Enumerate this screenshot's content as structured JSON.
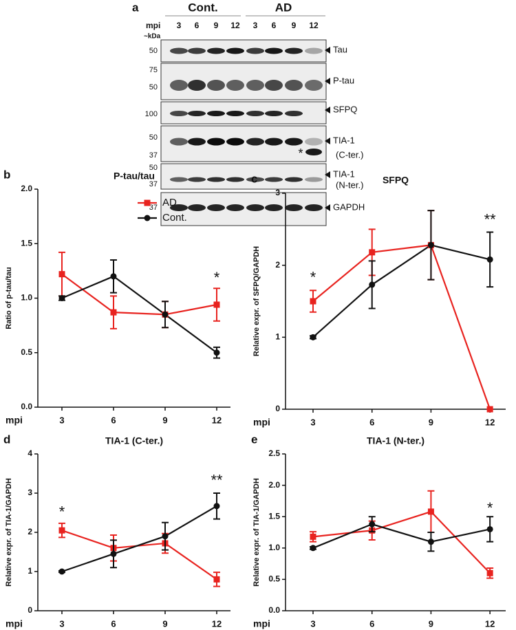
{
  "blot": {
    "panel": "a",
    "groups": [
      "Cont.",
      "AD"
    ],
    "mpi": "mpi",
    "lanes": [
      "3",
      "6",
      "9",
      "12",
      "3",
      "6",
      "9",
      "12"
    ],
    "kda": "~kDa",
    "strips": [
      {
        "markers": [
          "50"
        ],
        "protein": [
          "Tau"
        ]
      },
      {
        "markers": [
          "75",
          "50"
        ],
        "protein": [
          "P-tau"
        ]
      },
      {
        "markers": [
          "100"
        ],
        "protein": [
          "SFPQ"
        ]
      },
      {
        "markers": [
          "50",
          "37"
        ],
        "protein": [
          "TIA-1",
          "(C-ter.)"
        ],
        "note": "*"
      },
      {
        "markers": [
          "50",
          "37"
        ],
        "protein": [
          "TIA-1",
          "(N-ter.)"
        ]
      },
      {
        "markers": [
          "37"
        ],
        "protein": [
          "GAPDH"
        ]
      }
    ]
  },
  "chart_data": [
    {
      "type": "line",
      "panel": "b",
      "title": "P-tau/tau",
      "ylabel": "Ratio of p-tau/tau",
      "xlabel": "mpi",
      "x": [
        3,
        6,
        9,
        12
      ],
      "xlim": [
        1.6,
        12.8
      ],
      "xticks": [
        3,
        6,
        9,
        12
      ],
      "ylim": [
        0,
        2
      ],
      "yticks": [
        {
          "value": 0,
          "label": "0.0"
        },
        0.5,
        {
          "value": 1,
          "label": "1.0"
        },
        1.5,
        {
          "value": 2,
          "label": "2.0"
        }
      ],
      "legend": "upper right",
      "series": [
        {
          "name": "AD",
          "color": "#e8231f",
          "marker": "square",
          "values": [
            1.22,
            0.87,
            0.85,
            0.94
          ],
          "errors": [
            0.2,
            0.15,
            0.12,
            0.15
          ]
        },
        {
          "name": "Cont.",
          "color": "#111111",
          "marker": "circle",
          "values": [
            1.0,
            1.2,
            0.85,
            0.5
          ],
          "errors": [
            0.02,
            0.15,
            0.12,
            0.05
          ]
        }
      ],
      "annotations": [
        {
          "x": 12,
          "y": 1.18,
          "text": "*"
        }
      ]
    },
    {
      "type": "line",
      "panel": "c",
      "title": "SFPQ",
      "ylabel": "Relative expr. of SFPQ/GAPDH",
      "xlabel": "mpi",
      "x": [
        3,
        6,
        9,
        12
      ],
      "xlim": [
        1.6,
        12.8
      ],
      "xticks": [
        3,
        6,
        9,
        12
      ],
      "ylim": [
        0,
        3
      ],
      "yticks": [
        0,
        1,
        2,
        3
      ],
      "series": [
        {
          "color": "#e8231f",
          "marker": "square",
          "values": [
            1.5,
            2.18,
            2.28,
            0
          ],
          "errors": [
            0.15,
            0.32,
            0.48,
            0
          ]
        },
        {
          "color": "#111111",
          "marker": "circle",
          "values": [
            1.0,
            1.73,
            2.28,
            2.08
          ],
          "errors": [
            0.02,
            0.33,
            0.48,
            0.38
          ]
        }
      ],
      "annotations": [
        {
          "x": 3,
          "y": 1.82,
          "text": "*"
        },
        {
          "x": 12,
          "y": 2.62,
          "text": "**"
        }
      ]
    },
    {
      "type": "line",
      "panel": "d",
      "title": "TIA-1 (C-ter.)",
      "ylabel": "Relative expr. of TIA-1/GAPDH",
      "xlabel": "mpi",
      "x": [
        3,
        6,
        9,
        12
      ],
      "xlim": [
        1.6,
        12.8
      ],
      "xticks": [
        3,
        6,
        9,
        12
      ],
      "ylim": [
        0,
        4
      ],
      "yticks": [
        0,
        1,
        2,
        3,
        4
      ],
      "series": [
        {
          "color": "#e8231f",
          "marker": "square",
          "values": [
            2.05,
            1.6,
            1.72,
            0.8
          ],
          "errors": [
            0.18,
            0.33,
            0.25,
            0.18
          ]
        },
        {
          "color": "#111111",
          "marker": "circle",
          "values": [
            1.0,
            1.45,
            1.9,
            2.67
          ],
          "errors": [
            0.02,
            0.35,
            0.35,
            0.33
          ]
        }
      ],
      "annotations": [
        {
          "x": 3,
          "y": 2.5,
          "text": "*"
        },
        {
          "x": 12,
          "y": 3.3,
          "text": "**"
        }
      ]
    },
    {
      "type": "line",
      "panel": "e",
      "title": "TIA-1 (N-ter.)",
      "ylabel": "Relative expr. of TIA-1/GAPDH",
      "xlabel": "mpi",
      "x": [
        3,
        6,
        9,
        12
      ],
      "xlim": [
        1.6,
        12.8
      ],
      "xticks": [
        3,
        6,
        9,
        12
      ],
      "ylim": [
        0,
        2.5
      ],
      "yticks": [
        {
          "value": 0,
          "label": "0.0"
        },
        0.5,
        {
          "value": 1,
          "label": "1.0"
        },
        1.5,
        {
          "value": 2,
          "label": "2.0"
        },
        2.5
      ],
      "series": [
        {
          "color": "#e8231f",
          "marker": "square",
          "values": [
            1.18,
            1.28,
            1.58,
            0.6
          ],
          "errors": [
            0.08,
            0.15,
            0.33,
            0.08
          ]
        },
        {
          "color": "#111111",
          "marker": "circle",
          "values": [
            1.0,
            1.38,
            1.1,
            1.3
          ],
          "errors": [
            0.02,
            0.12,
            0.15,
            0.2
          ]
        }
      ],
      "annotations": [
        {
          "x": 12,
          "y": 1.62,
          "text": "*"
        }
      ]
    }
  ]
}
